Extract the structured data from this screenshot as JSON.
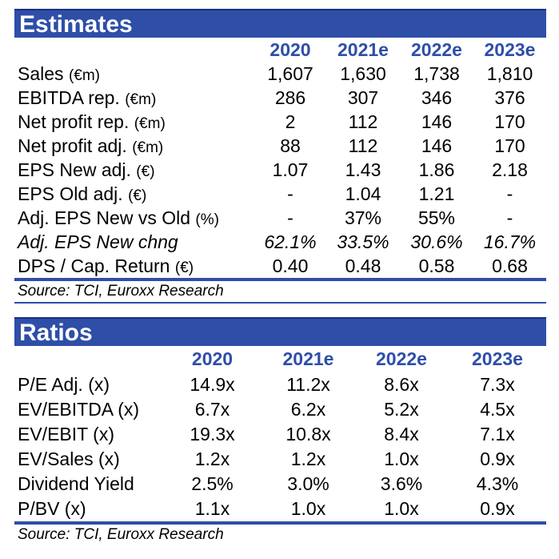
{
  "estimates": {
    "title": "Estimates",
    "years": [
      "2020",
      "2021e",
      "2022e",
      "2023e"
    ],
    "rows": [
      {
        "label": "Sales",
        "unit": "(€m)",
        "values": [
          "1,607",
          "1,630",
          "1,738",
          "1,810"
        ]
      },
      {
        "label": "EBITDA rep.",
        "unit": "(€m)",
        "values": [
          "286",
          "307",
          "346",
          "376"
        ]
      },
      {
        "label": "Net profit rep.",
        "unit": "(€m)",
        "values": [
          "2",
          "112",
          "146",
          "170"
        ]
      },
      {
        "label": "Net profit adj.",
        "unit": "(€m)",
        "values": [
          "88",
          "112",
          "146",
          "170"
        ]
      },
      {
        "label": "EPS New adj.",
        "unit": "(€)",
        "values": [
          "1.07",
          "1.43",
          "1.86",
          "2.18"
        ]
      },
      {
        "label": "EPS Old adj.",
        "unit": "(€)",
        "values": [
          "-",
          "1.04",
          "1.21",
          "-"
        ]
      },
      {
        "label": "Adj. EPS New vs Old",
        "unit": "(%)",
        "values": [
          "-",
          "37%",
          "55%",
          "-"
        ]
      },
      {
        "label": "Adj. EPS New chng",
        "unit": "",
        "values": [
          "62.1%",
          "33.5%",
          "30.6%",
          "16.7%"
        ]
      },
      {
        "label": "DPS / Cap. Return",
        "unit": "(€)",
        "values": [
          "0.40",
          "0.48",
          "0.58",
          "0.68"
        ]
      }
    ],
    "source": "Source: TCI, Euroxx Research"
  },
  "ratios": {
    "title": "Ratios",
    "years": [
      "2020",
      "2021e",
      "2022e",
      "2023e"
    ],
    "rows": [
      {
        "label": "P/E Adj. (x)",
        "values": [
          "14.9x",
          "11.2x",
          "8.6x",
          "7.3x"
        ]
      },
      {
        "label": "EV/EBITDA (x)",
        "values": [
          "6.7x",
          "6.2x",
          "5.2x",
          "4.5x"
        ]
      },
      {
        "label": "EV/EBIT (x)",
        "values": [
          "19.3x",
          "10.8x",
          "8.4x",
          "7.1x"
        ]
      },
      {
        "label": "EV/Sales (x)",
        "values": [
          "1.2x",
          "1.2x",
          "1.0x",
          "0.9x"
        ]
      },
      {
        "label": "Dividend Yield",
        "values": [
          "2.5%",
          "3.0%",
          "3.6%",
          "4.3%"
        ]
      },
      {
        "label": "P/BV (x)",
        "values": [
          "1.1x",
          "1.0x",
          "1.0x",
          "0.9x"
        ]
      }
    ],
    "source": "Source: TCI, Euroxx Research"
  },
  "colors": {
    "accent": "#2e4ea8"
  }
}
